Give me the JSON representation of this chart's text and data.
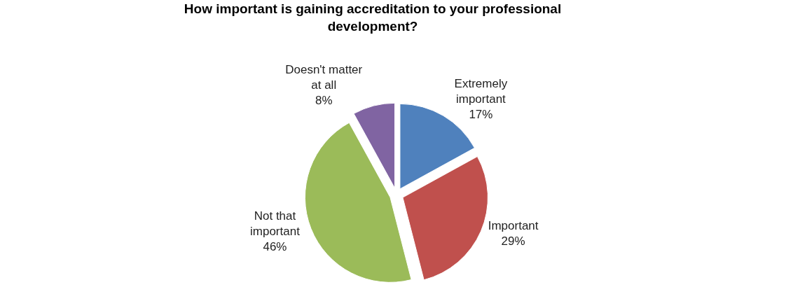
{
  "chart_data": {
    "type": "pie",
    "title": "How important is gaining accreditation to your professional development?",
    "categories": [
      "Extremely important",
      "Important",
      "Not that important",
      "Doesn't matter at all"
    ],
    "values": [
      17,
      29,
      46,
      8
    ],
    "value_labels": [
      "17%",
      "29%",
      "46%",
      "8%"
    ],
    "colors": [
      "#4f81bd",
      "#c0504d",
      "#9bbb59",
      "#8064a2"
    ],
    "legend": false
  }
}
